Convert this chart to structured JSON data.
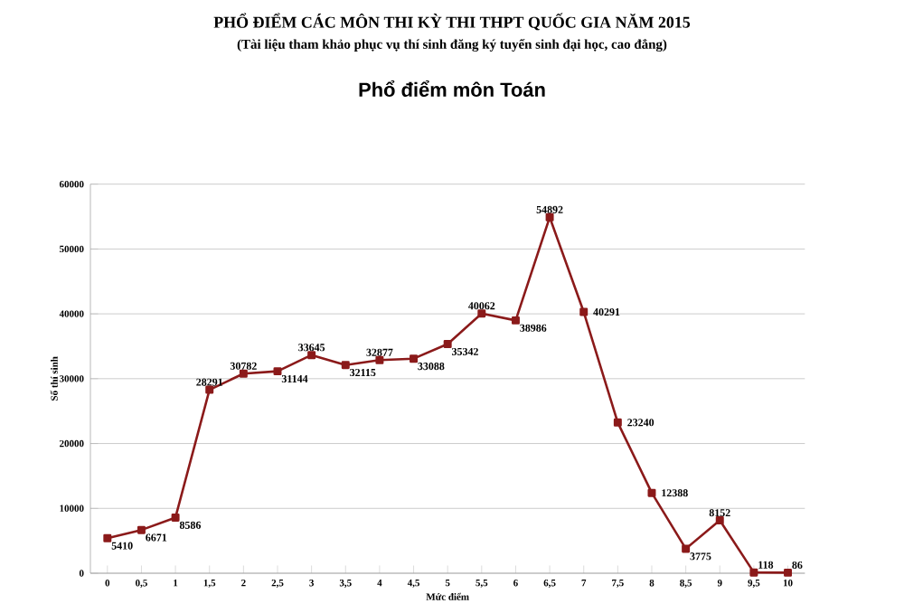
{
  "chart_data": {
    "type": "line",
    "title": "PHỔ ĐIỂM CÁC MÔN THI KỲ THI THPT QUỐC GIA NĂM 2015",
    "subtitle": "(Tài liệu tham khảo phục vụ thí sinh đăng ký tuyển sinh đại học, cao đẳng)",
    "annotations": [
      "Phổ điểm môn Toán"
    ],
    "xlabel": "Mức điểm",
    "ylabel": "Số thí sinh",
    "categories": [
      "0",
      "0,5",
      "1",
      "1,5",
      "2",
      "2,5",
      "3",
      "3,5",
      "4",
      "4,5",
      "5",
      "5,5",
      "6",
      "6,5",
      "7",
      "7,5",
      "8",
      "8,5",
      "9",
      "9,5",
      "10"
    ],
    "values": [
      5410,
      6671,
      8586,
      28291,
      30782,
      31144,
      33645,
      32115,
      32877,
      33088,
      35342,
      40062,
      38986,
      54892,
      40291,
      23240,
      12388,
      3775,
      8152,
      118,
      86
    ],
    "color": "#8b1a1a",
    "marker": "square",
    "data_labels": true,
    "grid": "y",
    "ylim": [
      0,
      60000
    ],
    "yticks": [
      0,
      10000,
      20000,
      30000,
      40000,
      50000,
      60000
    ]
  }
}
